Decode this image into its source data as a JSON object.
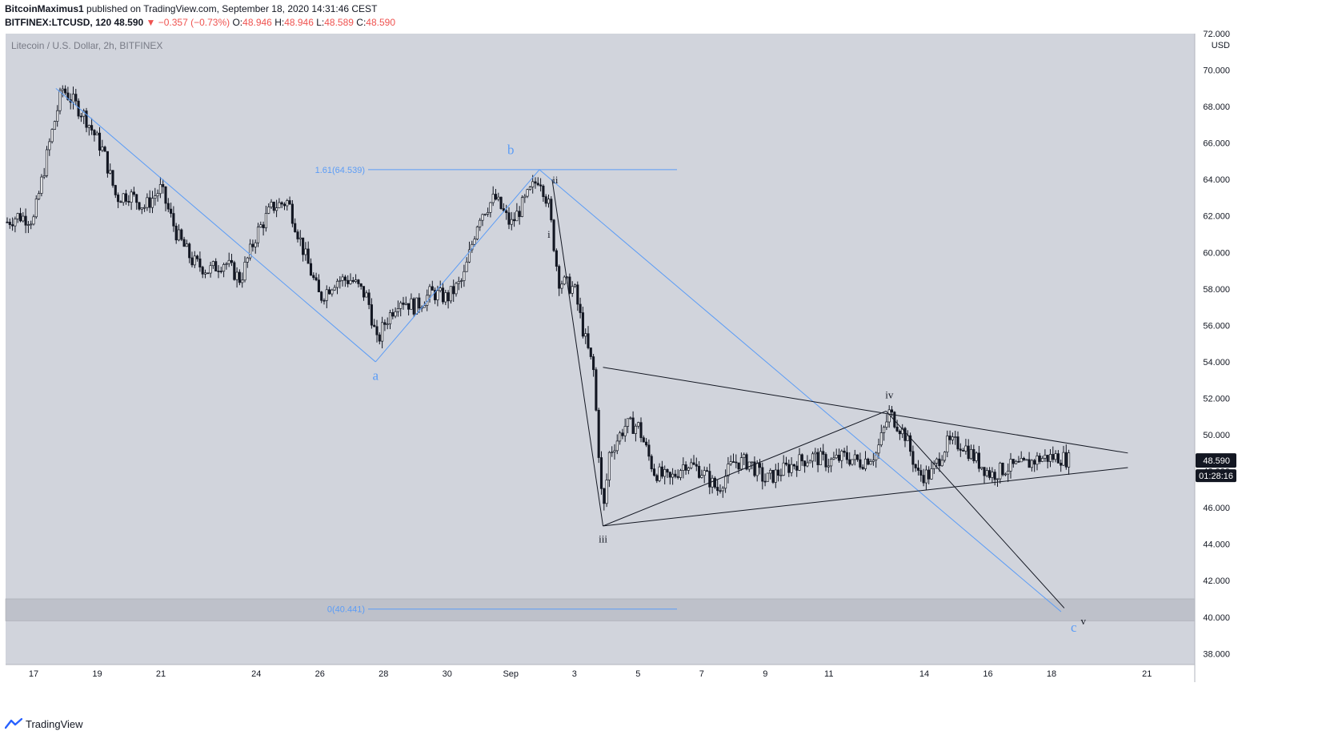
{
  "header": {
    "author": "BitcoinMaximus1",
    "published_text": "published on TradingView.com, September 18, 2020 14:31:46 CEST",
    "symbol": "BITFINEX:LTCUSD, 120",
    "last": "48.590",
    "change": "▼ −0.357 (−0.73%)",
    "o_label": "O:",
    "o_value": "48.946",
    "h_label": "H:",
    "h_value": "48.946",
    "l_label": "L:",
    "l_value": "48.589",
    "c_label": "C:",
    "c_value": "48.590"
  },
  "chart_title": "Litecoin / U.S. Dollar, 2h, BITFINEX",
  "footer": {
    "brand": "TradingView"
  },
  "colors": {
    "background": "#d1d4dc",
    "candle": "#131722",
    "fib": "#5b9cf6",
    "trend": "#131722",
    "zone": "#b3b6bf"
  },
  "chart_data": {
    "type": "candlestick",
    "title": "Litecoin / U.S. Dollar, 2h, BITFINEX",
    "ylabel": "USD",
    "ylim": [
      37.4,
      72.0
    ],
    "x_ticks": [
      "17",
      "19",
      "21",
      "24",
      "26",
      "28",
      "30",
      "Sep",
      "3",
      "5",
      "7",
      "9",
      "11",
      "14",
      "16",
      "18",
      "21"
    ],
    "y_ticks": [
      "38.000",
      "40.000",
      "42.000",
      "44.000",
      "46.000",
      "48.000",
      "50.000",
      "52.000",
      "54.000",
      "56.000",
      "58.000",
      "60.000",
      "62.000",
      "64.000",
      "66.000",
      "68.000",
      "70.000",
      "72.000"
    ],
    "y_ticks_values": [
      38,
      40,
      42,
      44,
      46,
      48,
      50,
      52,
      54,
      56,
      58,
      60,
      62,
      64,
      66,
      68,
      70,
      72
    ],
    "price_path": [
      [
        "Aug 16",
        61.5
      ],
      [
        "Aug 16.5",
        62.0
      ],
      [
        "Aug 17",
        61.8
      ],
      [
        "Aug 17.5",
        66.0
      ],
      [
        "Aug 17.9",
        69.0
      ],
      [
        "Aug 18.6",
        67.5
      ],
      [
        "Aug 19.2",
        65.5
      ],
      [
        "Aug 19.6",
        63.0
      ],
      [
        "Aug 20.0",
        63.2
      ],
      [
        "Aug 20.5",
        62.5
      ],
      [
        "Aug 21.0",
        63.5
      ],
      [
        "Aug 21.5",
        61.0
      ],
      [
        "Aug 22.0",
        59.5
      ],
      [
        "Aug 22.5",
        59.0
      ],
      [
        "Aug 23.0",
        59.5
      ],
      [
        "Aug 23.5",
        58.5
      ],
      [
        "Aug 24.0",
        61.0
      ],
      [
        "Aug 24.5",
        62.5
      ],
      [
        "Aug 25.0",
        62.8
      ],
      [
        "Aug 25.5",
        60.0
      ],
      [
        "Aug 26.0",
        57.5
      ],
      [
        "Aug 26.5",
        58.5
      ],
      [
        "Aug 27.0",
        58.5
      ],
      [
        "Aug 27.5",
        57.5
      ],
      [
        "Aug 27.8",
        55.0
      ],
      [
        "Aug 28.0",
        56.0
      ],
      [
        "Aug 28.5",
        57.5
      ],
      [
        "Aug 29.0",
        57.0
      ],
      [
        "Aug 29.5",
        57.8
      ],
      [
        "Aug 30.0",
        57.5
      ],
      [
        "Aug 30.5",
        58.5
      ],
      [
        "Aug 31.0",
        62.0
      ],
      [
        "Aug 31.5",
        63.0
      ],
      [
        "Sep 1.0",
        61.5
      ],
      [
        "Sep 1.5",
        63.0
      ],
      [
        "Sep 1.9",
        64.2
      ],
      [
        "Sep 2.2",
        62.5
      ],
      [
        "Sep 2.5",
        58.5
      ],
      [
        "Sep 3.0",
        58.0
      ],
      [
        "Sep 3.3",
        55.5
      ],
      [
        "Sep 3.6",
        53.5
      ],
      [
        "Sep 3.9",
        45.5
      ],
      [
        "Sep 4.1",
        49.0
      ],
      [
        "Sep 4.6",
        50.5
      ],
      [
        "Sep 5.0",
        50.5
      ],
      [
        "Sep 5.5",
        48.0
      ],
      [
        "Sep 6.0",
        47.5
      ],
      [
        "Sep 6.5",
        48.5
      ],
      [
        "Sep 7.0",
        48.0
      ],
      [
        "Sep 7.5",
        47.0
      ],
      [
        "Sep 8.0",
        48.5
      ],
      [
        "Sep 8.5",
        48.5
      ],
      [
        "Sep 9.0",
        47.5
      ],
      [
        "Sep 9.5",
        48.0
      ],
      [
        "Sep 10.0",
        48.5
      ],
      [
        "Sep 10.5",
        48.8
      ],
      [
        "Sep 11.0",
        48.5
      ],
      [
        "Sep 11.5",
        48.8
      ],
      [
        "Sep 12.0",
        48.5
      ],
      [
        "Sep 12.5",
        49.0
      ],
      [
        "Sep 12.9",
        51.2
      ],
      [
        "Sep 13.4",
        50.0
      ],
      [
        "Sep 13.8",
        47.8
      ],
      [
        "Sep 14.2",
        47.8
      ],
      [
        "Sep 14.7",
        49.5
      ],
      [
        "Sep 15.2",
        49.5
      ],
      [
        "Sep 15.7",
        48.5
      ],
      [
        "Sep 16.1",
        47.8
      ],
      [
        "Sep 16.6",
        48.2
      ],
      [
        "Sep 17.1",
        48.3
      ],
      [
        "Sep 17.6",
        48.7
      ],
      [
        "Sep 18.2",
        48.8
      ],
      [
        "Sep 18.6",
        48.59
      ]
    ],
    "price_label": "48.590",
    "countdown_label": "01:28:16",
    "fib_levels": [
      {
        "label": "1.61(64.539)",
        "value": 64.539
      },
      {
        "label": "0(40.441)",
        "value": 40.441
      }
    ],
    "support_zone": [
      39.8,
      41.0
    ],
    "wave_labels": [
      {
        "text": "a",
        "x": "Aug 27.75",
        "y": 53.0,
        "color": "fib"
      },
      {
        "text": "b",
        "x": "Sep 1.0",
        "y": 65.4,
        "color": "fib"
      },
      {
        "text": "c",
        "x": "Sep 18.7",
        "y": 39.2,
        "color": "fib"
      },
      {
        "text": "i",
        "x": "Sep 2.2",
        "y": 60.8,
        "color": "trend"
      },
      {
        "text": "ii",
        "x": "Sep 2.4",
        "y": 63.8,
        "color": "trend"
      },
      {
        "text": "iii",
        "x": "Sep 3.9",
        "y": 44.1,
        "color": "trend"
      },
      {
        "text": "iv",
        "x": "Sep 12.9",
        "y": 52.0,
        "color": "trend"
      },
      {
        "text": "v",
        "x": "Sep 19.0",
        "y": 39.6,
        "color": "trend"
      }
    ]
  }
}
